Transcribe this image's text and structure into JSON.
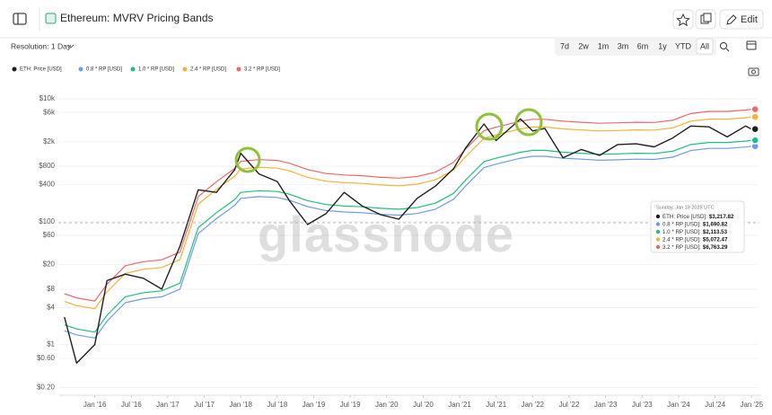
{
  "page": {
    "title": "Ethereum: MVRV Pricing Bands",
    "resolution": "Resolution: 1 Day",
    "ranges": [
      "7d",
      "2w",
      "1m",
      "3m",
      "6m",
      "1y",
      "YTD",
      "All"
    ],
    "edit": "Edit"
  },
  "chart_data": {
    "type": "line",
    "log_y": true,
    "grid": true,
    "watermark": "glassnode",
    "x": [
      "2015-08",
      "2015-10",
      "2016-01",
      "2016-03",
      "2016-06",
      "2016-09",
      "2016-12",
      "2017-03",
      "2017-06",
      "2017-09",
      "2017-12",
      "2018-01",
      "2018-04",
      "2018-07",
      "2018-09",
      "2018-12",
      "2019-03",
      "2019-06",
      "2019-09",
      "2019-12",
      "2020-03",
      "2020-06",
      "2020-09",
      "2020-12",
      "2021-02",
      "2021-05",
      "2021-07",
      "2021-11",
      "2022-01",
      "2022-03",
      "2022-06",
      "2022-09",
      "2022-12",
      "2023-03",
      "2023-06",
      "2023-09",
      "2023-12",
      "2024-03",
      "2024-06",
      "2024-09",
      "2024-12",
      "2025-01"
    ],
    "xlim": [
      "2015-07",
      "2025-02"
    ],
    "xticks": [
      {
        "value": "2016-01",
        "label": "Jan '16"
      },
      {
        "value": "2016-07",
        "label": "Jul '16"
      },
      {
        "value": "2017-01",
        "label": "Jan '17"
      },
      {
        "value": "2017-07",
        "label": "Jul '17"
      },
      {
        "value": "2018-01",
        "label": "Jan '18"
      },
      {
        "value": "2018-07",
        "label": "Jul '18"
      },
      {
        "value": "2019-01",
        "label": "Jan '19"
      },
      {
        "value": "2019-07",
        "label": "Jul '19"
      },
      {
        "value": "2020-01",
        "label": "Jan '20"
      },
      {
        "value": "2020-07",
        "label": "Jul '20"
      },
      {
        "value": "2021-01",
        "label": "Jan '21"
      },
      {
        "value": "2021-07",
        "label": "Jul '21"
      },
      {
        "value": "2022-01",
        "label": "Jan '22"
      },
      {
        "value": "2022-07",
        "label": "Jul '22"
      },
      {
        "value": "2023-01",
        "label": "Jan '23"
      },
      {
        "value": "2023-07",
        "label": "Jul '23"
      },
      {
        "value": "2024-01",
        "label": "Jan '24"
      },
      {
        "value": "2024-07",
        "label": "Jul '24"
      },
      {
        "value": "2025-01",
        "label": "Jan '25"
      }
    ],
    "ylim": [
      0.15,
      14000
    ],
    "yticks": [
      {
        "value": 0.2,
        "label": "$0.20"
      },
      {
        "value": 0.6,
        "label": "$0.60"
      },
      {
        "value": 1,
        "label": "$1"
      },
      {
        "value": 4,
        "label": "$4"
      },
      {
        "value": 8,
        "label": "$8"
      },
      {
        "value": 20,
        "label": "$20"
      },
      {
        "value": 60,
        "label": "$60"
      },
      {
        "value": 100,
        "label": "$100"
      },
      {
        "value": 400,
        "label": "$400"
      },
      {
        "value": 800,
        "label": "$800"
      },
      {
        "value": 2000,
        "label": "$2k"
      },
      {
        "value": 6000,
        "label": "$6k"
      },
      {
        "value": 10000,
        "label": "$10k"
      }
    ],
    "series": [
      {
        "name": "ETH: Price [USD]",
        "color": "#1e1e1e",
        "values": [
          2.8,
          0.5,
          1.0,
          11,
          14,
          12,
          8,
          40,
          330,
          300,
          700,
          1300,
          600,
          450,
          220,
          90,
          135,
          300,
          180,
          130,
          110,
          240,
          380,
          730,
          1600,
          3900,
          2100,
          4700,
          3000,
          3300,
          1100,
          1500,
          1200,
          1800,
          1850,
          1650,
          2300,
          3600,
          3500,
          2400,
          3600,
          3217.82
        ]
      },
      {
        "name": "0.8 * RP [USD]",
        "color": "#6f9be8",
        "values": [
          1.68,
          1.44,
          1.28,
          2.4,
          4.8,
          5.6,
          6,
          8,
          64,
          112,
          184,
          240,
          256,
          248,
          224,
          176,
          152,
          144,
          140,
          132,
          128,
          136,
          160,
          232,
          384,
          760,
          864,
          1080,
          1160,
          1160,
          1080,
          1040,
          1000,
          1016,
          1040,
          1032,
          1120,
          1440,
          1560,
          1560,
          1640,
          1690.82
        ]
      },
      {
        "name": "1.0 * RP [USD]",
        "color": "#1fbf7f",
        "values": [
          2.1,
          1.8,
          1.6,
          3,
          6,
          7,
          7.5,
          10,
          80,
          140,
          230,
          300,
          320,
          310,
          280,
          220,
          190,
          180,
          175,
          165,
          160,
          170,
          200,
          290,
          480,
          950,
          1080,
          1350,
          1450,
          1450,
          1350,
          1300,
          1250,
          1270,
          1300,
          1290,
          1400,
          1800,
          1950,
          1950,
          2050,
          2113.53
        ]
      },
      {
        "name": "2.4 * RP [USD]",
        "color": "#f5b335",
        "values": [
          5.04,
          4.32,
          3.84,
          7.2,
          14.4,
          16.8,
          18,
          24,
          192,
          336,
          552,
          720,
          768,
          744,
          672,
          528,
          456,
          432,
          420,
          396,
          384,
          408,
          480,
          696,
          1152,
          2280,
          2592,
          3240,
          3480,
          3480,
          3240,
          3120,
          3000,
          3048,
          3120,
          3096,
          3360,
          4320,
          4680,
          4680,
          4920,
          5072.47
        ]
      },
      {
        "name": "3.2 * RP [USD]",
        "color": "#f0676a",
        "values": [
          6.72,
          5.76,
          5.12,
          9.6,
          19.2,
          22.4,
          24,
          32,
          256,
          448,
          736,
          960,
          1024,
          992,
          896,
          704,
          608,
          576,
          560,
          528,
          512,
          544,
          640,
          928,
          1536,
          3040,
          3456,
          4320,
          4640,
          4640,
          4320,
          4160,
          4000,
          4064,
          4160,
          4128,
          4480,
          5760,
          6240,
          6240,
          6560,
          6763.29
        ]
      }
    ],
    "tooltip": {
      "date": "Sunday, Jan 19 2025 UTC",
      "labels": [
        "ETH: Price [USD]:",
        "0.8 * RP [USD]:",
        "1.0 * RP [USD]:",
        "2.4 * RP [USD]:",
        "3.2 * RP [USD]:"
      ],
      "values": [
        3217.82,
        1690.82,
        2113.53,
        5072.47,
        6763.29
      ],
      "value_labels": [
        "$3,217.82",
        "$1,690.82",
        "$2,113.53",
        "$5,072.47",
        "$6,763.29"
      ]
    }
  }
}
